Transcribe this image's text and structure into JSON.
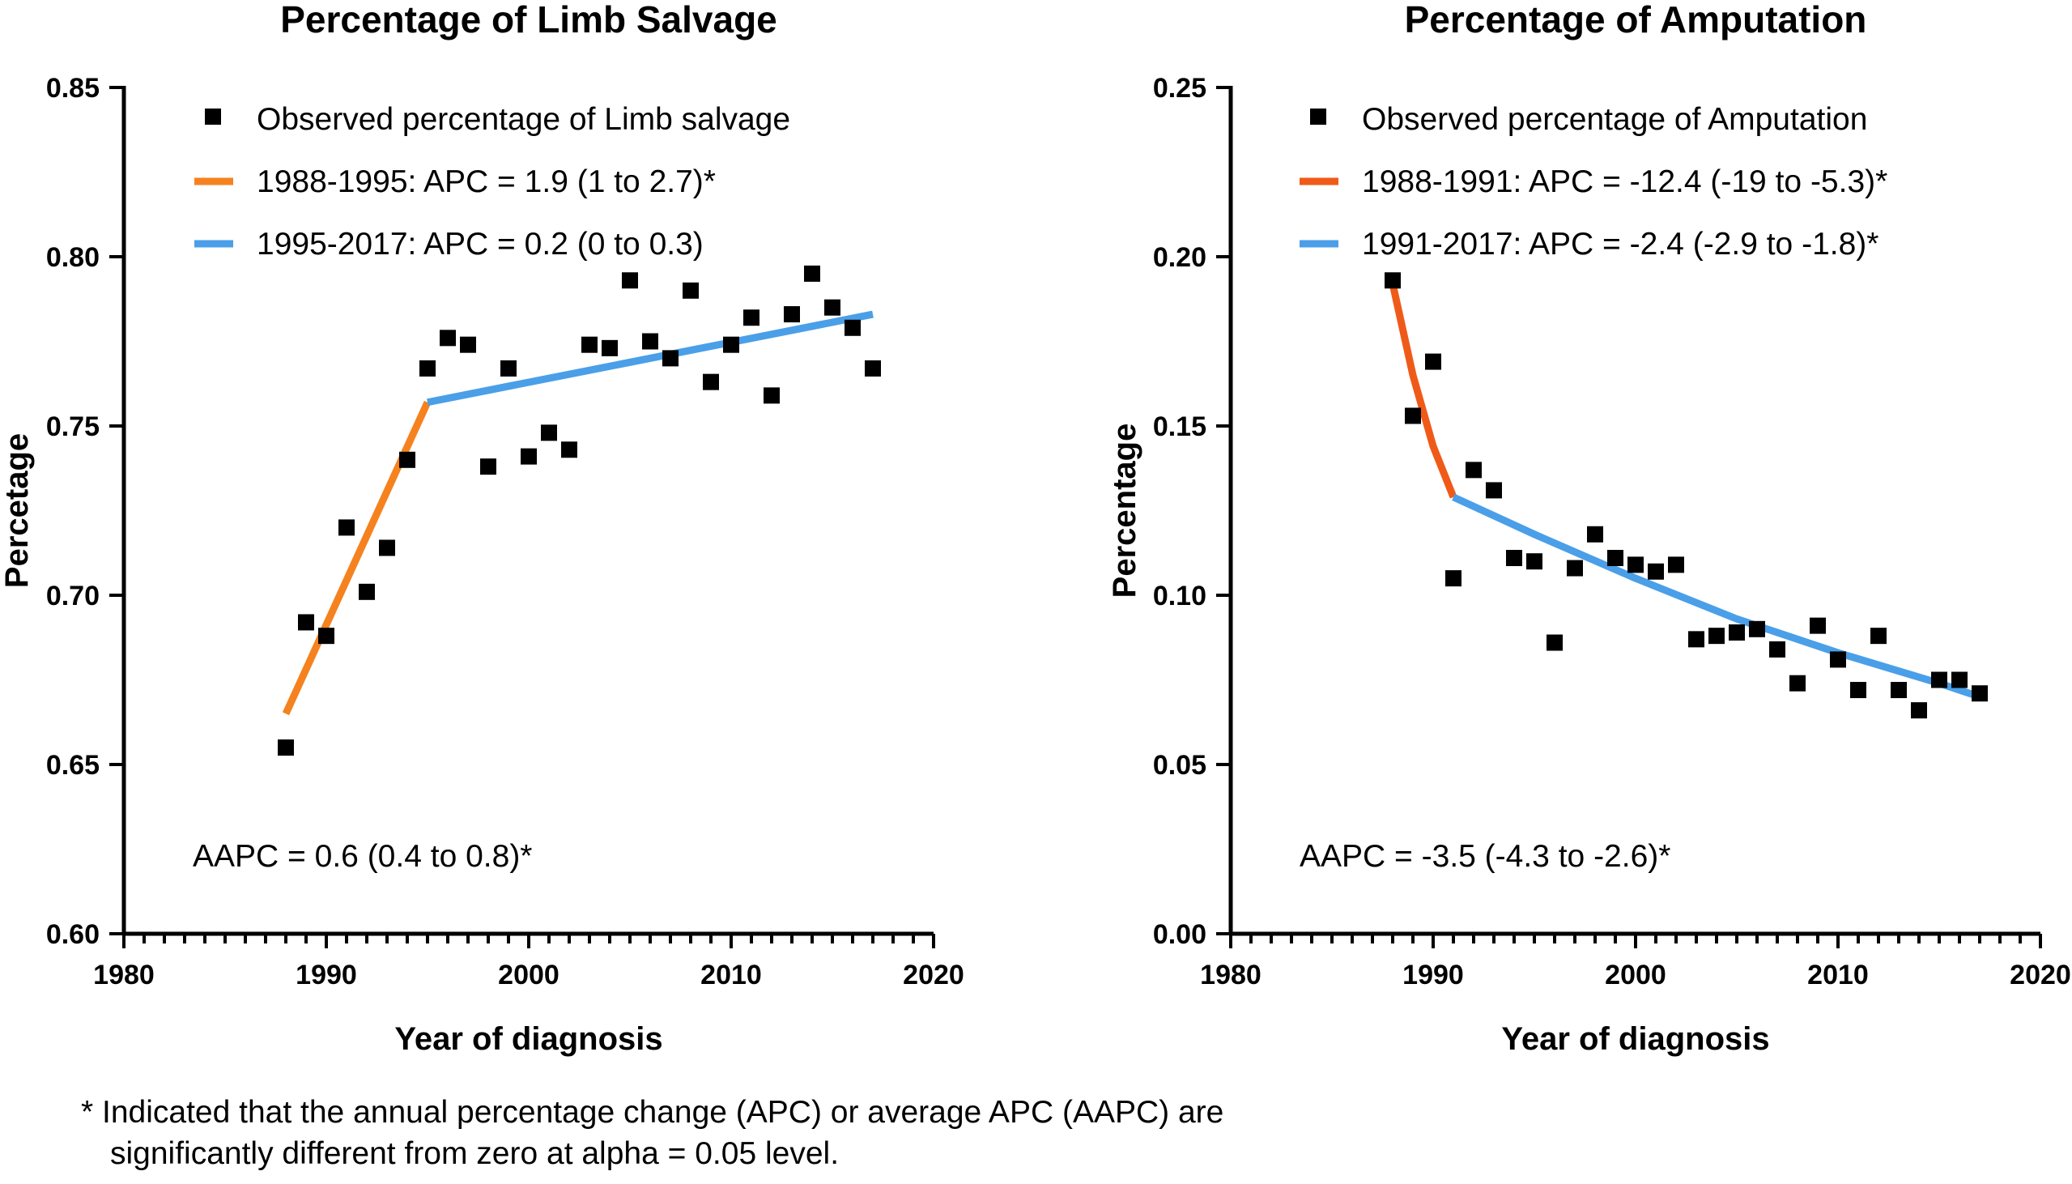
{
  "chart_data": [
    {
      "type": "scatter",
      "title": "Percentage of Limb Salvage",
      "xlabel": "Year of diagnosis",
      "ylabel": "Percetage",
      "xlim": [
        1980,
        2020
      ],
      "ylim": [
        0.6,
        0.85
      ],
      "xticks": [
        "1980",
        "1990",
        "2000",
        "2010",
        "2020"
      ],
      "yticks": [
        "0.60",
        "0.65",
        "0.70",
        "0.75",
        "0.80",
        "0.85"
      ],
      "series": [
        {
          "name": "Observed percentage of Limb salvage",
          "kind": "points",
          "color": "#000000",
          "x": [
            1988,
            1989,
            1990,
            1991,
            1992,
            1993,
            1994,
            1995,
            1996,
            1997,
            1998,
            1999,
            2000,
            2001,
            2002,
            2003,
            2004,
            2005,
            2006,
            2007,
            2008,
            2009,
            2010,
            2011,
            2012,
            2013,
            2014,
            2015,
            2016,
            2017
          ],
          "y": [
            0.655,
            0.692,
            0.688,
            0.72,
            0.701,
            0.714,
            0.74,
            0.767,
            0.776,
            0.774,
            0.738,
            0.767,
            0.741,
            0.748,
            0.743,
            0.774,
            0.773,
            0.793,
            0.775,
            0.77,
            0.79,
            0.763,
            0.774,
            0.782,
            0.759,
            0.783,
            0.795,
            0.785,
            0.779,
            0.767
          ]
        },
        {
          "name": "1988-1995: APC = 1.9 (1 to 2.7)*",
          "kind": "line",
          "color": "#F5821F",
          "x": [
            1988,
            1995
          ],
          "y": [
            0.665,
            0.757
          ]
        },
        {
          "name": "1995-2017: APC = 0.2 (0 to 0.3)",
          "kind": "line",
          "color": "#4A9FE8",
          "x": [
            1995,
            2017
          ],
          "y": [
            0.757,
            0.783
          ]
        }
      ],
      "annotation": "AAPC = 0.6 (0.4 to 0.8)*"
    },
    {
      "type": "scatter",
      "title": "Percentage of Amputation",
      "xlabel": "Year of diagnosis",
      "ylabel": "Percentage",
      "xlim": [
        1980,
        2020
      ],
      "ylim": [
        0.0,
        0.25
      ],
      "xticks": [
        "1980",
        "1990",
        "2000",
        "2010",
        "2020"
      ],
      "yticks": [
        "0.00",
        "0.05",
        "0.10",
        "0.15",
        "0.20",
        "0.25"
      ],
      "series": [
        {
          "name": "Observed percentage of Amputation",
          "kind": "points",
          "color": "#000000",
          "x": [
            1988,
            1989,
            1990,
            1991,
            1992,
            1993,
            1994,
            1995,
            1996,
            1997,
            1998,
            1999,
            2000,
            2001,
            2002,
            2003,
            2004,
            2005,
            2006,
            2007,
            2008,
            2009,
            2010,
            2011,
            2012,
            2013,
            2014,
            2015,
            2016,
            2017
          ],
          "y": [
            0.193,
            0.153,
            0.169,
            0.105,
            0.137,
            0.131,
            0.111,
            0.11,
            0.086,
            0.108,
            0.118,
            0.111,
            0.109,
            0.107,
            0.109,
            0.087,
            0.088,
            0.089,
            0.09,
            0.084,
            0.074,
            0.091,
            0.081,
            0.072,
            0.088,
            0.072,
            0.066,
            0.075,
            0.075,
            0.071
          ]
        },
        {
          "name": "1988-1991: APC = -12.4 (-19 to -5.3)*",
          "kind": "line",
          "color": "#F05A19",
          "x": [
            1988,
            1989,
            1990,
            1991
          ],
          "y": [
            0.192,
            0.165,
            0.144,
            0.129
          ]
        },
        {
          "name": "1991-2017: APC = -2.4 (-2.9 to -1.8)*",
          "kind": "line",
          "color": "#4A9FE8",
          "x": [
            1991,
            1995,
            2000,
            2005,
            2010,
            2015,
            2017
          ],
          "y": [
            0.129,
            0.118,
            0.105,
            0.093,
            0.083,
            0.074,
            0.07
          ]
        }
      ],
      "annotation": "AAPC = -3.5 (-4.3 to -2.6)*"
    }
  ],
  "footnote": {
    "line1": "* Indicated that the annual percentage change (APC) or average APC (AAPC) are",
    "line2": "significantly different from zero at alpha = 0.05 level."
  }
}
